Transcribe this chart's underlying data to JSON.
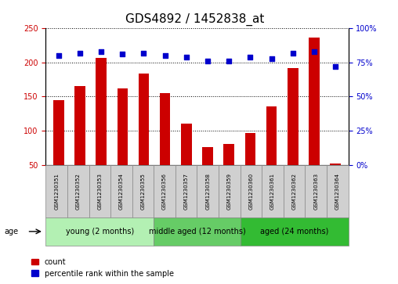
{
  "title": "GDS4892 / 1452838_at",
  "samples": [
    "GSM1230351",
    "GSM1230352",
    "GSM1230353",
    "GSM1230354",
    "GSM1230355",
    "GSM1230356",
    "GSM1230357",
    "GSM1230358",
    "GSM1230359",
    "GSM1230360",
    "GSM1230361",
    "GSM1230362",
    "GSM1230363",
    "GSM1230364"
  ],
  "counts": [
    145,
    165,
    207,
    162,
    184,
    155,
    110,
    76,
    80,
    96,
    135,
    192,
    237,
    52
  ],
  "percentiles": [
    80,
    82,
    83,
    81,
    82,
    80,
    79,
    76,
    76,
    79,
    78,
    82,
    83,
    72
  ],
  "ylim_left": [
    50,
    250
  ],
  "ylim_right": [
    0,
    100
  ],
  "yticks_left": [
    50,
    100,
    150,
    200,
    250
  ],
  "yticks_right": [
    0,
    25,
    50,
    75,
    100
  ],
  "bar_color": "#cc0000",
  "dot_color": "#0000cc",
  "grid_color": "#000000",
  "bg_color": "#ffffff",
  "sample_box_color": "#d0d0d0",
  "groups": [
    {
      "label": "young (2 months)",
      "start": 0,
      "end": 5,
      "color": "#b3f0b3"
    },
    {
      "label": "middle aged (12 months)",
      "start": 5,
      "end": 9,
      "color": "#66cc66"
    },
    {
      "label": "aged (24 months)",
      "start": 9,
      "end": 14,
      "color": "#33bb33"
    }
  ],
  "age_label": "age",
  "legend_items": [
    {
      "label": "count",
      "color": "#cc0000"
    },
    {
      "label": "percentile rank within the sample",
      "color": "#0000cc"
    }
  ],
  "title_fontsize": 11,
  "tick_fontsize": 7,
  "sample_fontsize": 5,
  "group_fontsize": 7,
  "legend_fontsize": 7
}
